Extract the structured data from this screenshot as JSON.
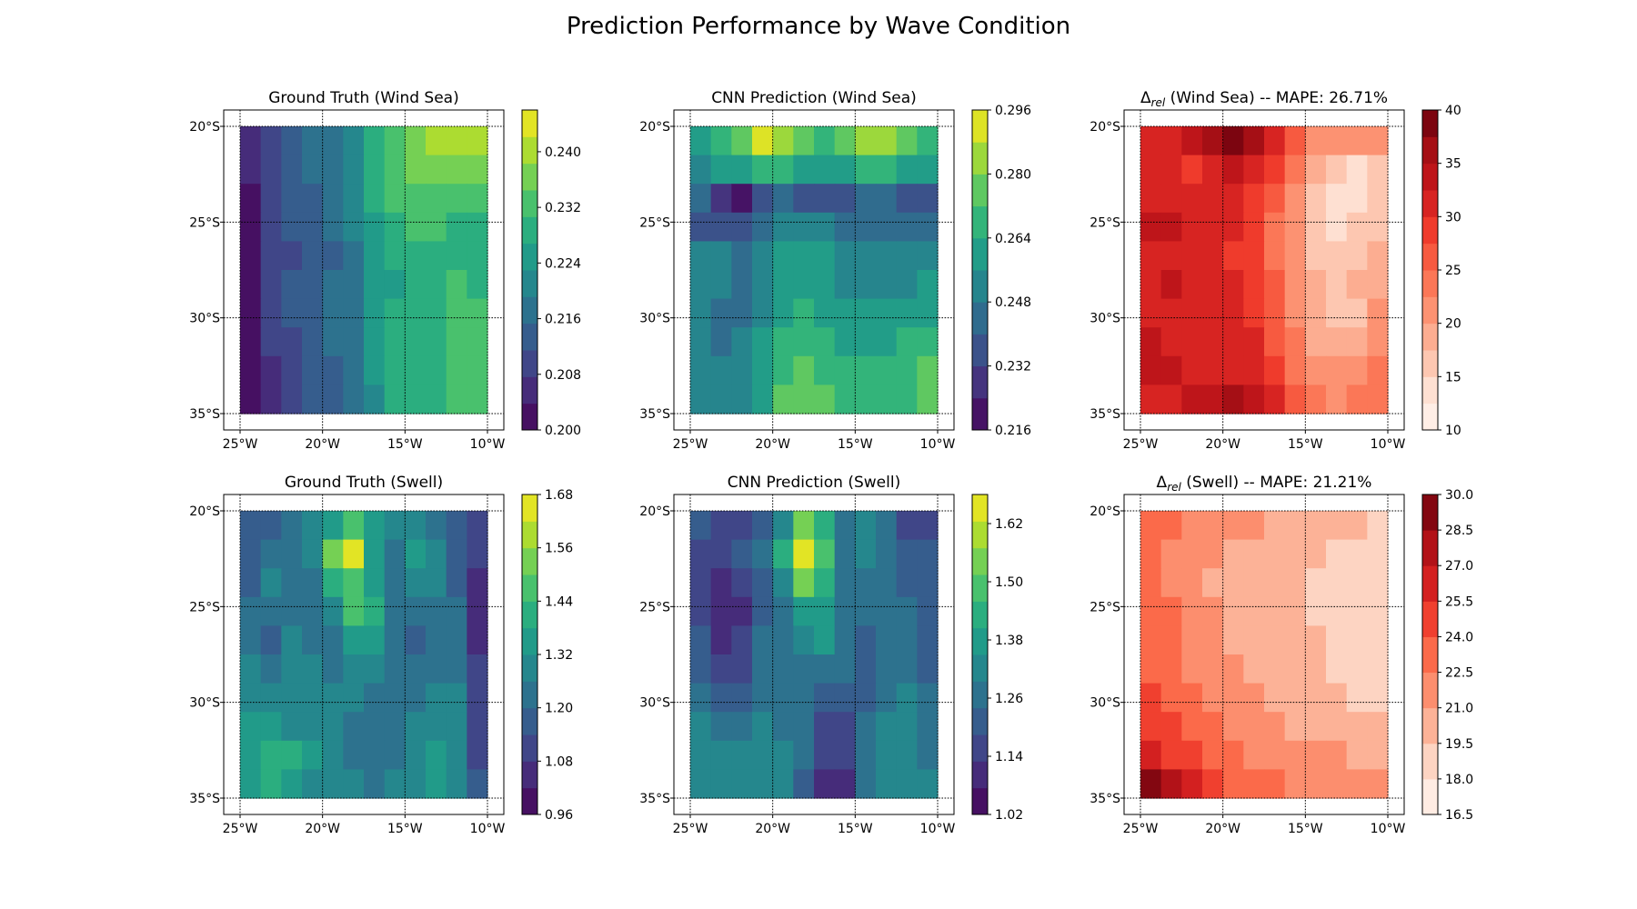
{
  "suptitle": "Prediction Performance by Wave Condition",
  "chart_data": [
    {
      "type": "heatmap",
      "title": "Ground Truth (Wind Sea)",
      "colormap": "viridis",
      "lon": [
        -25,
        -10
      ],
      "lat": [
        -35,
        -20
      ],
      "x_ticks": [
        "25°W",
        "20°W",
        "15°W",
        "10°W"
      ],
      "y_ticks": [
        "20°S",
        "25°S",
        "30°S",
        "35°S"
      ],
      "colorbar": {
        "min": 0.2,
        "max": 0.246,
        "levels": 12,
        "ticks": [
          "0.200",
          "0.208",
          "0.216",
          "0.224",
          "0.232",
          "0.240"
        ],
        "tick_values": [
          0.2,
          0.208,
          0.216,
          0.224,
          0.232,
          0.24
        ]
      },
      "grid": true,
      "field": [
        [
          0.205,
          0.208,
          0.213,
          0.216,
          0.219,
          0.22,
          0.227,
          0.232,
          0.236,
          0.24,
          0.242,
          0.239
        ],
        [
          0.204,
          0.208,
          0.213,
          0.217,
          0.219,
          0.221,
          0.228,
          0.233,
          0.235,
          0.238,
          0.238,
          0.236
        ],
        [
          0.203,
          0.209,
          0.214,
          0.215,
          0.218,
          0.222,
          0.229,
          0.232,
          0.233,
          0.233,
          0.233,
          0.233
        ],
        [
          0.203,
          0.208,
          0.213,
          0.215,
          0.217,
          0.22,
          0.226,
          0.229,
          0.231,
          0.231,
          0.23,
          0.23
        ],
        [
          0.203,
          0.208,
          0.211,
          0.214,
          0.215,
          0.219,
          0.225,
          0.227,
          0.229,
          0.229,
          0.23,
          0.23
        ],
        [
          0.202,
          0.208,
          0.212,
          0.214,
          0.216,
          0.218,
          0.224,
          0.226,
          0.228,
          0.229,
          0.231,
          0.23
        ],
        [
          0.202,
          0.209,
          0.212,
          0.212,
          0.216,
          0.219,
          0.224,
          0.227,
          0.229,
          0.23,
          0.231,
          0.231
        ],
        [
          0.202,
          0.208,
          0.211,
          0.213,
          0.216,
          0.218,
          0.223,
          0.227,
          0.229,
          0.23,
          0.231,
          0.232
        ],
        [
          0.203,
          0.207,
          0.21,
          0.213,
          0.215,
          0.217,
          0.223,
          0.228,
          0.228,
          0.23,
          0.232,
          0.232
        ],
        [
          0.203,
          0.206,
          0.21,
          0.213,
          0.214,
          0.216,
          0.222,
          0.227,
          0.228,
          0.229,
          0.231,
          0.233
        ]
      ]
    },
    {
      "type": "heatmap",
      "title": "CNN Prediction (Wind Sea)",
      "colormap": "viridis",
      "lon": [
        -25,
        -10
      ],
      "lat": [
        -35,
        -20
      ],
      "x_ticks": [
        "25°W",
        "20°W",
        "15°W",
        "10°W"
      ],
      "y_ticks": [
        "20°S",
        "25°S",
        "30°S",
        "35°S"
      ],
      "colorbar": {
        "min": 0.216,
        "max": 0.296,
        "levels": 10,
        "ticks": [
          "0.216",
          "0.232",
          "0.248",
          "0.264",
          "0.280",
          "0.296"
        ],
        "tick_values": [
          0.216,
          0.232,
          0.248,
          0.264,
          0.28,
          0.296
        ]
      },
      "grid": true,
      "field": [
        [
          0.262,
          0.27,
          0.276,
          0.29,
          0.282,
          0.272,
          0.268,
          0.272,
          0.28,
          0.282,
          0.272,
          0.266
        ],
        [
          0.254,
          0.258,
          0.262,
          0.27,
          0.266,
          0.258,
          0.256,
          0.26,
          0.264,
          0.266,
          0.262,
          0.258
        ],
        [
          0.24,
          0.23,
          0.222,
          0.236,
          0.24,
          0.236,
          0.236,
          0.238,
          0.24,
          0.24,
          0.238,
          0.238
        ],
        [
          0.238,
          0.232,
          0.232,
          0.244,
          0.25,
          0.252,
          0.25,
          0.246,
          0.246,
          0.244,
          0.244,
          0.244
        ],
        [
          0.248,
          0.248,
          0.246,
          0.248,
          0.256,
          0.262,
          0.258,
          0.254,
          0.252,
          0.25,
          0.25,
          0.252
        ],
        [
          0.25,
          0.248,
          0.246,
          0.25,
          0.258,
          0.262,
          0.256,
          0.254,
          0.254,
          0.252,
          0.254,
          0.256
        ],
        [
          0.248,
          0.246,
          0.246,
          0.254,
          0.262,
          0.266,
          0.262,
          0.258,
          0.258,
          0.258,
          0.26,
          0.262
        ],
        [
          0.248,
          0.246,
          0.248,
          0.256,
          0.266,
          0.27,
          0.266,
          0.262,
          0.262,
          0.262,
          0.264,
          0.268
        ],
        [
          0.25,
          0.25,
          0.252,
          0.258,
          0.27,
          0.274,
          0.27,
          0.266,
          0.264,
          0.266,
          0.268,
          0.272
        ],
        [
          0.25,
          0.25,
          0.254,
          0.26,
          0.272,
          0.278,
          0.274,
          0.27,
          0.266,
          0.268,
          0.27,
          0.274
        ]
      ]
    },
    {
      "type": "heatmap",
      "title_prefix": "Δ",
      "title_subscript": "rel",
      "title_suffix": " (Wind Sea) -- MAPE: 26.71%",
      "colormap": "reds",
      "lon": [
        -25,
        -10
      ],
      "lat": [
        -35,
        -20
      ],
      "x_ticks": [
        "25°W",
        "20°W",
        "15°W",
        "10°W"
      ],
      "y_ticks": [
        "20°S",
        "25°S",
        "30°S",
        "35°S"
      ],
      "colorbar": {
        "min": 10,
        "max": 40,
        "levels": 12,
        "ticks": [
          "10",
          "15",
          "20",
          "25",
          "30",
          "35",
          "40"
        ],
        "tick_values": [
          10,
          15,
          20,
          25,
          30,
          35,
          40
        ]
      },
      "grid": true,
      "field": [
        [
          31,
          32,
          33,
          35,
          38,
          36,
          30,
          26,
          22,
          21,
          22,
          20
        ],
        [
          31,
          30,
          29,
          31,
          34,
          32,
          28,
          24,
          19,
          16,
          14,
          15
        ],
        [
          32,
          31,
          30,
          31,
          31,
          29,
          25,
          21,
          16,
          13,
          13,
          15
        ],
        [
          33,
          33,
          32,
          31,
          30,
          28,
          24,
          20,
          17,
          14,
          15,
          17
        ],
        [
          32,
          32,
          31,
          30,
          29,
          28,
          24,
          20,
          17,
          15,
          17,
          18
        ],
        [
          32,
          33,
          31,
          30,
          30,
          29,
          25,
          21,
          18,
          16,
          18,
          19
        ],
        [
          32,
          31,
          30,
          30,
          30,
          29,
          26,
          22,
          18,
          16,
          17,
          20
        ],
        [
          33,
          32,
          31,
          30,
          31,
          30,
          27,
          23,
          19,
          18,
          19,
          21
        ],
        [
          33,
          33,
          32,
          31,
          32,
          31,
          28,
          24,
          21,
          20,
          21,
          23
        ],
        [
          32,
          32,
          33,
          33,
          35,
          33,
          30,
          26,
          23,
          22,
          23,
          24
        ]
      ]
    },
    {
      "type": "heatmap",
      "title": "Ground Truth (Swell)",
      "colormap": "viridis",
      "lon": [
        -25,
        -10
      ],
      "lat": [
        -35,
        -20
      ],
      "x_ticks": [
        "25°W",
        "20°W",
        "15°W",
        "10°W"
      ],
      "y_ticks": [
        "20°S",
        "25°S",
        "30°S",
        "35°S"
      ],
      "colorbar": {
        "min": 0.96,
        "max": 1.68,
        "levels": 12,
        "ticks": [
          "0.96",
          "1.08",
          "1.20",
          "1.32",
          "1.44",
          "1.56",
          "1.68"
        ],
        "tick_values": [
          0.96,
          1.08,
          1.2,
          1.32,
          1.44,
          1.56,
          1.68
        ]
      },
      "grid": true,
      "field": [
        [
          1.16,
          1.18,
          1.2,
          1.26,
          1.38,
          1.48,
          1.32,
          1.26,
          1.3,
          1.24,
          1.18,
          1.1
        ],
        [
          1.18,
          1.22,
          1.2,
          1.3,
          1.54,
          1.62,
          1.36,
          1.24,
          1.32,
          1.26,
          1.16,
          1.08
        ],
        [
          1.16,
          1.26,
          1.2,
          1.22,
          1.4,
          1.48,
          1.34,
          1.22,
          1.26,
          1.28,
          1.18,
          1.06
        ],
        [
          1.2,
          1.24,
          1.24,
          1.2,
          1.26,
          1.44,
          1.4,
          1.2,
          1.22,
          1.24,
          1.2,
          1.06
        ],
        [
          1.24,
          1.18,
          1.26,
          1.22,
          1.22,
          1.36,
          1.36,
          1.22,
          1.18,
          1.22,
          1.22,
          1.06
        ],
        [
          1.26,
          1.22,
          1.26,
          1.26,
          1.24,
          1.3,
          1.28,
          1.2,
          1.2,
          1.24,
          1.24,
          1.08
        ],
        [
          1.3,
          1.28,
          1.26,
          1.28,
          1.26,
          1.28,
          1.24,
          1.22,
          1.24,
          1.26,
          1.26,
          1.1
        ],
        [
          1.32,
          1.36,
          1.3,
          1.3,
          1.28,
          1.24,
          1.22,
          1.24,
          1.28,
          1.3,
          1.28,
          1.12
        ],
        [
          1.34,
          1.4,
          1.42,
          1.32,
          1.3,
          1.24,
          1.2,
          1.24,
          1.28,
          1.32,
          1.3,
          1.14
        ],
        [
          1.36,
          1.4,
          1.36,
          1.3,
          1.3,
          1.26,
          1.24,
          1.26,
          1.3,
          1.32,
          1.3,
          1.16
        ]
      ]
    },
    {
      "type": "heatmap",
      "title": "CNN Prediction (Swell)",
      "colormap": "viridis",
      "lon": [
        -25,
        -10
      ],
      "lat": [
        -35,
        -20
      ],
      "x_ticks": [
        "25°W",
        "20°W",
        "15°W",
        "10°W"
      ],
      "y_ticks": [
        "20°S",
        "25°S",
        "30°S",
        "35°S"
      ],
      "colorbar": {
        "min": 1.02,
        "max": 1.68,
        "levels": 12,
        "ticks": [
          "1.02",
          "1.14",
          "1.26",
          "1.38",
          "1.50",
          "1.62"
        ],
        "tick_values": [
          1.02,
          1.14,
          1.26,
          1.38,
          1.5,
          1.62
        ]
      },
      "grid": true,
      "field": [
        [
          1.2,
          1.16,
          1.18,
          1.22,
          1.34,
          1.56,
          1.44,
          1.28,
          1.3,
          1.24,
          1.18,
          1.18
        ],
        [
          1.16,
          1.18,
          1.2,
          1.24,
          1.42,
          1.66,
          1.48,
          1.28,
          1.3,
          1.28,
          1.2,
          1.2
        ],
        [
          1.14,
          1.12,
          1.16,
          1.22,
          1.34,
          1.52,
          1.44,
          1.26,
          1.26,
          1.28,
          1.22,
          1.2
        ],
        [
          1.18,
          1.12,
          1.12,
          1.2,
          1.26,
          1.38,
          1.4,
          1.26,
          1.24,
          1.26,
          1.24,
          1.22
        ],
        [
          1.2,
          1.1,
          1.14,
          1.24,
          1.24,
          1.3,
          1.36,
          1.26,
          1.2,
          1.24,
          1.26,
          1.22
        ],
        [
          1.22,
          1.16,
          1.18,
          1.26,
          1.24,
          1.26,
          1.28,
          1.24,
          1.2,
          1.26,
          1.28,
          1.22
        ],
        [
          1.26,
          1.22,
          1.2,
          1.28,
          1.26,
          1.24,
          1.22,
          1.2,
          1.22,
          1.28,
          1.3,
          1.24
        ],
        [
          1.3,
          1.28,
          1.26,
          1.3,
          1.28,
          1.24,
          1.18,
          1.16,
          1.24,
          1.3,
          1.32,
          1.26
        ],
        [
          1.32,
          1.3,
          1.3,
          1.32,
          1.3,
          1.24,
          1.16,
          1.14,
          1.26,
          1.32,
          1.34,
          1.28
        ],
        [
          1.3,
          1.3,
          1.3,
          1.3,
          1.3,
          1.22,
          1.12,
          1.1,
          1.24,
          1.32,
          1.34,
          1.3
        ]
      ]
    },
    {
      "type": "heatmap",
      "title_prefix": "Δ",
      "title_subscript": "rel",
      "title_suffix": " (Swell) -- MAPE: 21.21%",
      "colormap": "reds",
      "lon": [
        -25,
        -10
      ],
      "lat": [
        -35,
        -20
      ],
      "x_ticks": [
        "25°W",
        "20°W",
        "15°W",
        "10°W"
      ],
      "y_ticks": [
        "20°S",
        "25°S",
        "30°S",
        "35°S"
      ],
      "colorbar": {
        "min": 16.5,
        "max": 30.0,
        "levels": 9,
        "ticks": [
          "16.5",
          "18.0",
          "19.5",
          "21.0",
          "22.5",
          "24.0",
          "25.5",
          "27.0",
          "28.5",
          "30.0"
        ],
        "tick_values": [
          16.5,
          18.0,
          19.5,
          21.0,
          22.5,
          24.0,
          25.5,
          27.0,
          28.5,
          30.0
        ]
      },
      "grid": true,
      "field": [
        [
          23.0,
          22.6,
          22.0,
          21.6,
          21.2,
          21.0,
          20.6,
          20.4,
          20.0,
          19.8,
          19.6,
          19.4
        ],
        [
          23.0,
          22.2,
          21.6,
          21.0,
          20.8,
          20.6,
          20.2,
          19.8,
          19.6,
          19.2,
          18.8,
          18.6
        ],
        [
          23.4,
          22.4,
          21.6,
          20.8,
          20.4,
          20.2,
          20.0,
          19.6,
          19.4,
          19.0,
          18.6,
          18.6
        ],
        [
          23.2,
          22.6,
          21.8,
          21.0,
          20.6,
          20.4,
          20.0,
          19.6,
          19.4,
          19.0,
          18.6,
          18.4
        ],
        [
          23.4,
          22.8,
          22.0,
          21.2,
          20.8,
          20.4,
          20.2,
          19.8,
          19.6,
          19.2,
          18.2,
          18.6
        ],
        [
          23.6,
          23.0,
          22.2,
          21.6,
          21.2,
          20.8,
          20.4,
          20.0,
          19.8,
          19.4,
          19.0,
          18.8
        ],
        [
          24.2,
          23.6,
          22.8,
          22.2,
          21.6,
          21.2,
          20.8,
          20.4,
          20.0,
          19.6,
          19.4,
          19.2
        ],
        [
          25.0,
          24.4,
          23.6,
          22.8,
          22.2,
          21.8,
          21.2,
          20.8,
          20.4,
          20.2,
          20.0,
          20.0
        ],
        [
          26.4,
          25.4,
          24.6,
          23.8,
          23.0,
          22.4,
          22.0,
          21.6,
          21.2,
          21.0,
          20.8,
          20.6
        ],
        [
          28.8,
          27.0,
          25.6,
          24.6,
          23.6,
          23.0,
          22.6,
          22.2,
          22.0,
          21.8,
          21.6,
          21.4
        ]
      ]
    }
  ]
}
